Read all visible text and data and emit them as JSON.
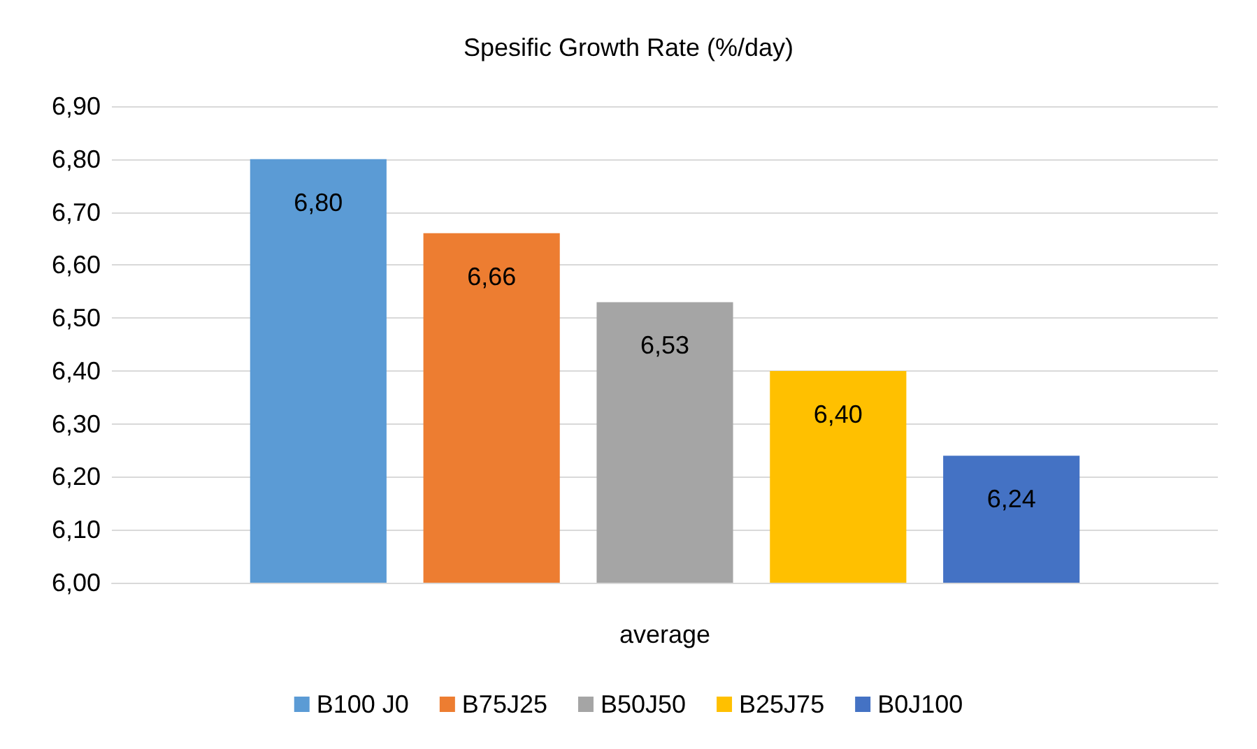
{
  "chart_data": {
    "type": "bar",
    "title": "Spesific Growth Rate (%/day)",
    "categories": [
      "average"
    ],
    "series": [
      {
        "name": "B100 J0",
        "color": "#5b9bd5",
        "values": [
          6.8
        ],
        "value_labels": [
          "6,80"
        ]
      },
      {
        "name": "B75J25",
        "color": "#ed7d31",
        "values": [
          6.66
        ],
        "value_labels": [
          "6,66"
        ]
      },
      {
        "name": "B50J50",
        "color": "#a5a5a5",
        "values": [
          6.53
        ],
        "value_labels": [
          "6,53"
        ]
      },
      {
        "name": "B25J75",
        "color": "#ffc000",
        "values": [
          6.4
        ],
        "value_labels": [
          "6,40"
        ]
      },
      {
        "name": "B0J100",
        "color": "#4472c4",
        "values": [
          6.24
        ],
        "value_labels": [
          "6,24"
        ]
      }
    ],
    "ylim": [
      6.0,
      6.9
    ],
    "yticks": [
      {
        "value": 6.0,
        "label": "6,00"
      },
      {
        "value": 6.1,
        "label": "6,10"
      },
      {
        "value": 6.2,
        "label": "6,20"
      },
      {
        "value": 6.3,
        "label": "6,30"
      },
      {
        "value": 6.4,
        "label": "6,40"
      },
      {
        "value": 6.5,
        "label": "6,50"
      },
      {
        "value": 6.6,
        "label": "6,60"
      },
      {
        "value": 6.7,
        "label": "6,70"
      },
      {
        "value": 6.8,
        "label": "6,80"
      },
      {
        "value": 6.9,
        "label": "6,90"
      }
    ],
    "grid": true,
    "legend": "bottom"
  }
}
